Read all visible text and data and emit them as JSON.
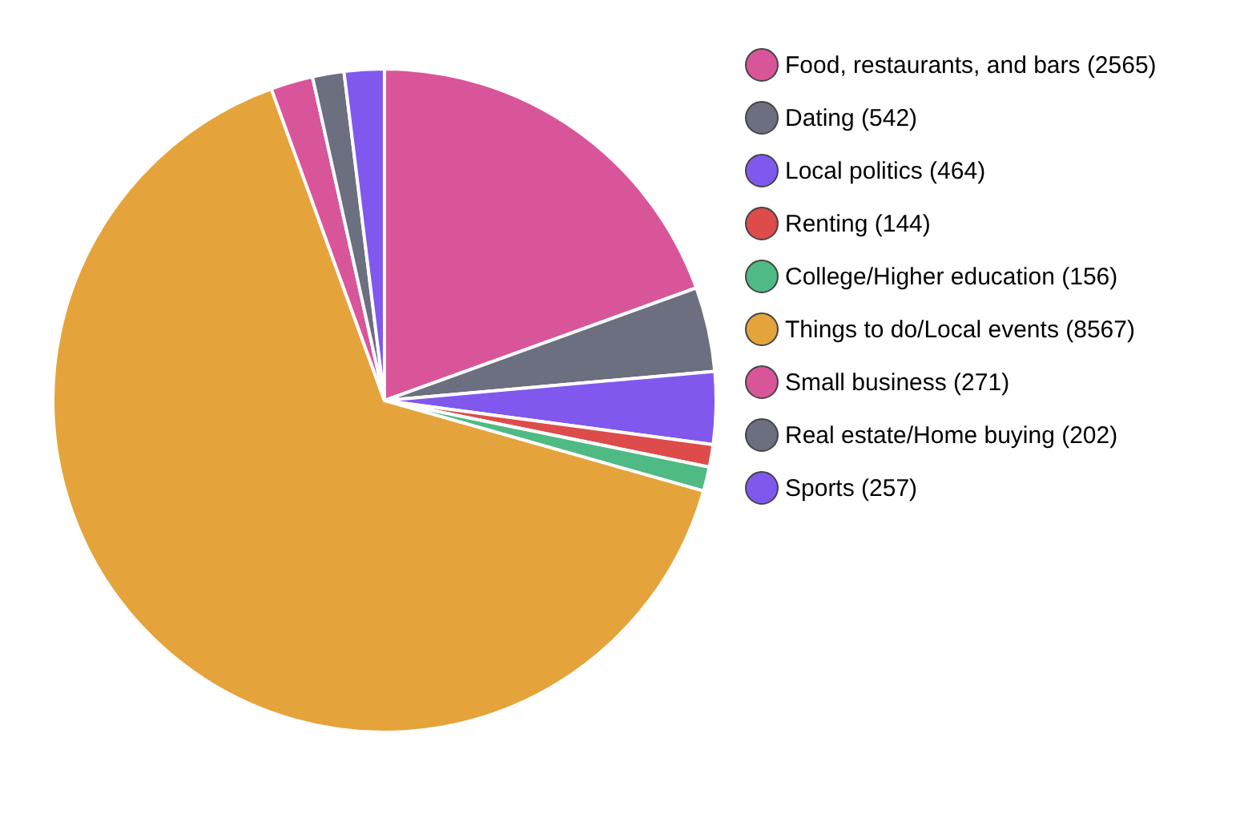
{
  "chart_data": {
    "type": "pie",
    "legend": "right",
    "categories": [
      "Food, restaurants, and bars (2565)",
      "Dating (542)",
      "Local politics (464)",
      "Renting (144)",
      "College/Higher education (156)",
      "Things to do/Local events (8567)",
      "Small business (271)",
      "Real estate/Home buying (202)",
      "Sports (257)"
    ],
    "values": [
      2565,
      542,
      464,
      144,
      156,
      8567,
      271,
      202,
      257
    ],
    "colors": [
      "#d9559a",
      "#6b6f80",
      "#8158ee",
      "#dd4b4b",
      "#4fba84",
      "#e5a33b",
      "#d9559a",
      "#6b6f80",
      "#8158ee"
    ]
  }
}
